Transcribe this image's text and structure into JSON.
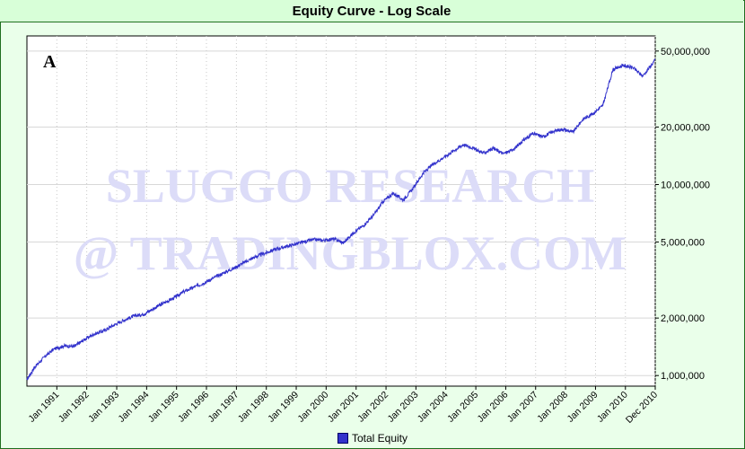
{
  "chart_data": {
    "type": "line",
    "title": "Equity Curve - Log Scale",
    "panel_label": "A",
    "watermark_lines": [
      "SLUGGO RESEARCH",
      "@ TRADINGBLOX.COM"
    ],
    "y_scale": "log",
    "ylim": [
      880000,
      60000000
    ],
    "y_ticks": [
      1000000,
      2000000,
      5000000,
      10000000,
      20000000,
      50000000
    ],
    "y_tick_labels": [
      "1,000,000",
      "2,000,000",
      "5,000,000",
      "10,000,000",
      "20,000,000",
      "50,000,000"
    ],
    "xlim": [
      "1990-01-01",
      "2010-12-31"
    ],
    "x_ticks": [
      "1991-01-01",
      "1992-01-01",
      "1993-01-01",
      "1994-01-01",
      "1995-01-01",
      "1996-01-01",
      "1997-01-01",
      "1998-01-01",
      "1999-01-01",
      "2000-01-01",
      "2001-01-01",
      "2002-01-01",
      "2003-01-01",
      "2004-01-01",
      "2005-01-01",
      "2006-01-01",
      "2007-01-01",
      "2008-01-01",
      "2009-01-01",
      "2010-01-01",
      "2010-12-31"
    ],
    "x_tick_labels": [
      "Jan 1991",
      "Jan 1992",
      "Jan 1993",
      "Jan 1994",
      "Jan 1995",
      "Jan 1996",
      "Jan 1997",
      "Jan 1998",
      "Jan 1999",
      "Jan 2000",
      "Jan 2001",
      "Jan 2002",
      "Jan 2003",
      "Jan 2004",
      "Jan 2005",
      "Jan 2006",
      "Jan 2007",
      "Jan 2008",
      "Jan 2009",
      "Jan 2010",
      "Dec 2010"
    ],
    "grid": true,
    "legend_position": "bottom",
    "series": [
      {
        "name": "Total Equity",
        "color": "#3333cc",
        "x": [
          "1990-01-01",
          "1990-04-01",
          "1990-08-01",
          "1990-12-01",
          "1991-04-01",
          "1991-08-01",
          "1991-12-01",
          "1992-04-01",
          "1992-08-01",
          "1992-12-01",
          "1993-04-01",
          "1993-08-01",
          "1993-12-01",
          "1994-04-01",
          "1994-08-01",
          "1994-12-01",
          "1995-04-01",
          "1995-08-01",
          "1995-12-01",
          "1996-04-01",
          "1996-08-01",
          "1996-12-01",
          "1997-04-01",
          "1997-08-01",
          "1997-12-01",
          "1998-04-01",
          "1998-08-01",
          "1998-12-01",
          "1999-04-01",
          "1999-08-01",
          "1999-12-01",
          "2000-04-01",
          "2000-08-01",
          "2000-12-01",
          "2001-04-01",
          "2001-08-01",
          "2001-12-01",
          "2002-04-01",
          "2002-08-01",
          "2002-12-01",
          "2003-04-01",
          "2003-08-01",
          "2003-12-01",
          "2004-04-01",
          "2004-08-01",
          "2004-12-01",
          "2005-04-01",
          "2005-08-01",
          "2005-12-01",
          "2006-04-01",
          "2006-08-01",
          "2006-12-01",
          "2007-04-01",
          "2007-08-01",
          "2007-12-01",
          "2008-04-01",
          "2008-08-01",
          "2008-12-01",
          "2009-04-01",
          "2009-08-01",
          "2009-12-01",
          "2010-04-01",
          "2010-08-01",
          "2010-12-31"
        ],
        "values": [
          950000,
          1100000,
          1250000,
          1380000,
          1430000,
          1420000,
          1540000,
          1650000,
          1720000,
          1840000,
          1950000,
          2050000,
          2100000,
          2250000,
          2400000,
          2550000,
          2750000,
          2900000,
          3050000,
          3250000,
          3450000,
          3650000,
          3900000,
          4150000,
          4350000,
          4550000,
          4700000,
          4850000,
          5000000,
          5150000,
          5100000,
          5200000,
          4950000,
          5600000,
          6100000,
          6900000,
          8200000,
          9000000,
          8300000,
          9600000,
          11500000,
          12800000,
          13800000,
          15000000,
          16200000,
          15500000,
          14600000,
          15500000,
          14500000,
          15200000,
          17000000,
          18500000,
          17800000,
          19000000,
          19500000,
          18800000,
          22000000,
          23500000,
          26000000,
          40000000,
          42000000,
          41000000,
          37000000,
          45000000
        ]
      }
    ]
  }
}
